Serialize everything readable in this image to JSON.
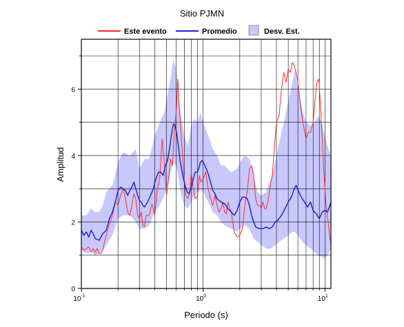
{
  "chart_data": {
    "type": "line",
    "title": "Sitio PJMN",
    "xlabel": "Periodo (s)",
    "ylabel": "Amplitud",
    "x_scale": "log",
    "xlim": [
      0.1,
      11.2
    ],
    "ylim": [
      0,
      7.5
    ],
    "x_tick_labels": [
      {
        "x": 0.1,
        "base": "10",
        "exp": "-1"
      },
      {
        "x": 1,
        "base": "10",
        "exp": "0"
      },
      {
        "x": 10,
        "base": "10",
        "exp": "1"
      }
    ],
    "y_ticks": [
      0,
      2,
      4,
      6
    ],
    "grid": true,
    "legend_position": "top",
    "legend": [
      {
        "label": "Este evento",
        "kind": "line",
        "color": "#ff2a2a"
      },
      {
        "label": "Promedio",
        "kind": "line",
        "color": "#1a1ad0"
      },
      {
        "label": "Desv. Est.",
        "kind": "band",
        "color": "#c8c8ff"
      }
    ],
    "series": [
      {
        "name": "Este evento",
        "color": "#ff2a2a",
        "points": [
          [
            0.1,
            1.25
          ],
          [
            0.105,
            1.15
          ],
          [
            0.11,
            1.2
          ],
          [
            0.115,
            1.25
          ],
          [
            0.12,
            1.1
          ],
          [
            0.125,
            1.2
          ],
          [
            0.13,
            1.1
          ],
          [
            0.135,
            1.2
          ],
          [
            0.14,
            1.05
          ],
          [
            0.145,
            1.05
          ],
          [
            0.15,
            1.15
          ],
          [
            0.155,
            1.4
          ],
          [
            0.16,
            1.6
          ],
          [
            0.17,
            1.95
          ],
          [
            0.18,
            2.2
          ],
          [
            0.19,
            2.6
          ],
          [
            0.2,
            2.5
          ],
          [
            0.21,
            2.8
          ],
          [
            0.22,
            3.0
          ],
          [
            0.23,
            2.7
          ],
          [
            0.24,
            2.3
          ],
          [
            0.25,
            2.2
          ],
          [
            0.26,
            2.5
          ],
          [
            0.27,
            2.85
          ],
          [
            0.28,
            2.7
          ],
          [
            0.29,
            2.2
          ],
          [
            0.3,
            2.1
          ],
          [
            0.31,
            2.3
          ],
          [
            0.32,
            1.9
          ],
          [
            0.33,
            1.85
          ],
          [
            0.34,
            2.2
          ],
          [
            0.36,
            2.2
          ],
          [
            0.38,
            2.55
          ],
          [
            0.4,
            2.2
          ],
          [
            0.42,
            3.0
          ],
          [
            0.44,
            3.3
          ],
          [
            0.46,
            4.5
          ],
          [
            0.48,
            3.8
          ],
          [
            0.5,
            2.8
          ],
          [
            0.52,
            3.3
          ],
          [
            0.54,
            3.9
          ],
          [
            0.56,
            3.7
          ],
          [
            0.58,
            4.7
          ],
          [
            0.6,
            5.3
          ],
          [
            0.62,
            6.3
          ],
          [
            0.64,
            5.3
          ],
          [
            0.66,
            4.6
          ],
          [
            0.68,
            3.9
          ],
          [
            0.7,
            3.2
          ],
          [
            0.72,
            2.8
          ],
          [
            0.75,
            2.7
          ],
          [
            0.78,
            3.0
          ],
          [
            0.8,
            3.5
          ],
          [
            0.83,
            3.0
          ],
          [
            0.86,
            2.7
          ],
          [
            0.9,
            2.8
          ],
          [
            0.93,
            3.4
          ],
          [
            0.96,
            3.2
          ],
          [
            1.0,
            3.3
          ],
          [
            1.05,
            3.5
          ],
          [
            1.1,
            3.0
          ],
          [
            1.15,
            2.7
          ],
          [
            1.2,
            2.5
          ],
          [
            1.25,
            2.8
          ],
          [
            1.3,
            2.5
          ],
          [
            1.35,
            2.3
          ],
          [
            1.4,
            2.4
          ],
          [
            1.45,
            2.6
          ],
          [
            1.5,
            2.3
          ],
          [
            1.55,
            2.25
          ],
          [
            1.6,
            2.6
          ],
          [
            1.7,
            2.3
          ],
          [
            1.8,
            1.7
          ],
          [
            1.9,
            1.55
          ],
          [
            2.0,
            1.6
          ],
          [
            2.1,
            1.8
          ],
          [
            2.2,
            2.5
          ],
          [
            2.3,
            2.9
          ],
          [
            2.4,
            3.6
          ],
          [
            2.5,
            3.7
          ],
          [
            2.6,
            3.4
          ],
          [
            2.7,
            2.7
          ],
          [
            2.8,
            2.5
          ],
          [
            2.9,
            2.5
          ],
          [
            3.0,
            2.4
          ],
          [
            3.1,
            2.6
          ],
          [
            3.2,
            2.4
          ],
          [
            3.3,
            2.4
          ],
          [
            3.4,
            2.6
          ],
          [
            3.5,
            2.9
          ],
          [
            3.6,
            3.2
          ],
          [
            3.7,
            3.4
          ],
          [
            3.8,
            4.0
          ],
          [
            4.0,
            5.0
          ],
          [
            4.2,
            5.2
          ],
          [
            4.4,
            6.0
          ],
          [
            4.6,
            6.5
          ],
          [
            4.8,
            6.2
          ],
          [
            5.0,
            6.6
          ],
          [
            5.2,
            6.5
          ],
          [
            5.4,
            6.8
          ],
          [
            5.6,
            6.7
          ],
          [
            5.8,
            6.5
          ],
          [
            6.0,
            6.2
          ],
          [
            6.3,
            5.5
          ],
          [
            6.6,
            5.0
          ],
          [
            7.0,
            4.5
          ],
          [
            7.3,
            4.7
          ],
          [
            7.6,
            4.7
          ],
          [
            8.0,
            5.0
          ],
          [
            8.3,
            5.7
          ],
          [
            8.6,
            6.2
          ],
          [
            8.9,
            6.3
          ],
          [
            9.2,
            5.5
          ],
          [
            9.5,
            4.5
          ],
          [
            9.8,
            3.5
          ],
          [
            10.2,
            2.5
          ],
          [
            10.6,
            2.0
          ],
          [
            11.0,
            1.5
          ],
          [
            11.2,
            1.4
          ]
        ]
      },
      {
        "name": "Promedio",
        "color": "#1a1ad0",
        "points": [
          [
            0.1,
            1.75
          ],
          [
            0.105,
            1.6
          ],
          [
            0.11,
            1.7
          ],
          [
            0.115,
            1.55
          ],
          [
            0.12,
            1.75
          ],
          [
            0.125,
            1.65
          ],
          [
            0.13,
            1.5
          ],
          [
            0.14,
            1.45
          ],
          [
            0.15,
            1.65
          ],
          [
            0.16,
            1.75
          ],
          [
            0.17,
            2.1
          ],
          [
            0.18,
            2.3
          ],
          [
            0.19,
            2.6
          ],
          [
            0.2,
            2.95
          ],
          [
            0.21,
            3.05
          ],
          [
            0.22,
            3.0
          ],
          [
            0.23,
            2.95
          ],
          [
            0.24,
            2.8
          ],
          [
            0.25,
            2.95
          ],
          [
            0.26,
            3.05
          ],
          [
            0.27,
            3.2
          ],
          [
            0.28,
            3.0
          ],
          [
            0.29,
            2.8
          ],
          [
            0.3,
            2.65
          ],
          [
            0.31,
            2.6
          ],
          [
            0.32,
            2.5
          ],
          [
            0.33,
            2.45
          ],
          [
            0.35,
            2.6
          ],
          [
            0.37,
            2.8
          ],
          [
            0.39,
            3.0
          ],
          [
            0.41,
            3.3
          ],
          [
            0.43,
            3.5
          ],
          [
            0.45,
            3.5
          ],
          [
            0.47,
            3.4
          ],
          [
            0.49,
            3.7
          ],
          [
            0.51,
            3.85
          ],
          [
            0.53,
            4.2
          ],
          [
            0.55,
            4.65
          ],
          [
            0.57,
            4.95
          ],
          [
            0.59,
            4.9
          ],
          [
            0.61,
            4.6
          ],
          [
            0.63,
            4.2
          ],
          [
            0.65,
            3.8
          ],
          [
            0.68,
            3.4
          ],
          [
            0.71,
            3.1
          ],
          [
            0.74,
            2.9
          ],
          [
            0.77,
            2.85
          ],
          [
            0.8,
            3.05
          ],
          [
            0.83,
            3.3
          ],
          [
            0.86,
            3.5
          ],
          [
            0.89,
            3.5
          ],
          [
            0.92,
            3.6
          ],
          [
            0.95,
            3.8
          ],
          [
            0.98,
            3.85
          ],
          [
            1.02,
            3.75
          ],
          [
            1.06,
            3.6
          ],
          [
            1.1,
            3.45
          ],
          [
            1.15,
            3.2
          ],
          [
            1.2,
            2.95
          ],
          [
            1.25,
            2.85
          ],
          [
            1.3,
            2.7
          ],
          [
            1.4,
            2.6
          ],
          [
            1.5,
            2.55
          ],
          [
            1.6,
            2.4
          ],
          [
            1.7,
            2.3
          ],
          [
            1.8,
            2.2
          ],
          [
            1.9,
            2.35
          ],
          [
            2.0,
            2.6
          ],
          [
            2.1,
            2.75
          ],
          [
            2.2,
            2.75
          ],
          [
            2.3,
            2.7
          ],
          [
            2.4,
            2.5
          ],
          [
            2.5,
            2.2
          ],
          [
            2.6,
            2.0
          ],
          [
            2.7,
            1.85
          ],
          [
            2.9,
            1.8
          ],
          [
            3.1,
            1.8
          ],
          [
            3.3,
            1.85
          ],
          [
            3.5,
            1.8
          ],
          [
            3.7,
            1.85
          ],
          [
            3.9,
            2.0
          ],
          [
            4.1,
            2.05
          ],
          [
            4.4,
            2.2
          ],
          [
            4.7,
            2.4
          ],
          [
            5.0,
            2.6
          ],
          [
            5.3,
            2.75
          ],
          [
            5.6,
            3.0
          ],
          [
            5.8,
            3.1
          ],
          [
            6.1,
            2.9
          ],
          [
            6.4,
            2.75
          ],
          [
            6.8,
            2.6
          ],
          [
            7.2,
            2.45
          ],
          [
            7.6,
            2.6
          ],
          [
            8.0,
            2.35
          ],
          [
            8.5,
            2.25
          ],
          [
            9.0,
            2.1
          ],
          [
            9.5,
            2.3
          ],
          [
            10.0,
            2.35
          ],
          [
            10.5,
            2.3
          ],
          [
            11.0,
            2.5
          ],
          [
            11.2,
            2.6
          ]
        ]
      }
    ],
    "band": {
      "name": "Desv. Est.",
      "color": "#c8c8ff",
      "points": [
        [
          0.1,
          1.15,
          2.2
        ],
        [
          0.11,
          1.05,
          2.2
        ],
        [
          0.12,
          1.1,
          2.4
        ],
        [
          0.13,
          1.0,
          2.3
        ],
        [
          0.14,
          1.05,
          2.3
        ],
        [
          0.15,
          1.15,
          2.5
        ],
        [
          0.16,
          1.3,
          2.9
        ],
        [
          0.18,
          1.6,
          3.1
        ],
        [
          0.2,
          2.1,
          3.8
        ],
        [
          0.22,
          2.2,
          4.1
        ],
        [
          0.25,
          2.2,
          4.0
        ],
        [
          0.28,
          2.0,
          4.2
        ],
        [
          0.3,
          1.8,
          3.6
        ],
        [
          0.33,
          1.8,
          3.9
        ],
        [
          0.36,
          1.9,
          3.9
        ],
        [
          0.4,
          2.3,
          4.6
        ],
        [
          0.44,
          2.5,
          5.0
        ],
        [
          0.48,
          2.8,
          5.3
        ],
        [
          0.52,
          3.2,
          6.0
        ],
        [
          0.55,
          3.6,
          6.5
        ],
        [
          0.57,
          3.8,
          6.9
        ],
        [
          0.6,
          3.7,
          6.6
        ],
        [
          0.63,
          3.3,
          5.8
        ],
        [
          0.66,
          2.8,
          5.2
        ],
        [
          0.7,
          2.5,
          4.6
        ],
        [
          0.75,
          2.4,
          4.3
        ],
        [
          0.8,
          2.6,
          4.9
        ],
        [
          0.85,
          2.8,
          5.1
        ],
        [
          0.9,
          2.9,
          5.0
        ],
        [
          0.95,
          3.0,
          5.3
        ],
        [
          1.0,
          2.9,
          5.0
        ],
        [
          1.1,
          2.6,
          4.6
        ],
        [
          1.2,
          2.3,
          4.2
        ],
        [
          1.3,
          2.2,
          4.0
        ],
        [
          1.4,
          2.0,
          3.7
        ],
        [
          1.5,
          1.9,
          3.7
        ],
        [
          1.7,
          1.8,
          3.5
        ],
        [
          1.9,
          1.7,
          3.6
        ],
        [
          2.0,
          1.8,
          3.8
        ],
        [
          2.2,
          1.9,
          4.0
        ],
        [
          2.4,
          1.8,
          3.9
        ],
        [
          2.6,
          1.5,
          3.4
        ],
        [
          2.8,
          1.4,
          2.9
        ],
        [
          3.0,
          1.3,
          2.8
        ],
        [
          3.3,
          1.2,
          2.9
        ],
        [
          3.6,
          1.2,
          3.3
        ],
        [
          3.9,
          1.3,
          3.8
        ],
        [
          4.2,
          1.4,
          4.4
        ],
        [
          4.6,
          1.5,
          5.0
        ],
        [
          5.0,
          1.6,
          5.6
        ],
        [
          5.4,
          1.7,
          6.2
        ],
        [
          5.7,
          1.7,
          6.6
        ],
        [
          6.0,
          1.6,
          6.0
        ],
        [
          6.5,
          1.4,
          5.4
        ],
        [
          7.0,
          1.3,
          5.0
        ],
        [
          7.6,
          1.2,
          4.9
        ],
        [
          8.2,
          1.1,
          5.0
        ],
        [
          8.8,
          1.0,
          5.2
        ],
        [
          9.4,
          0.95,
          5.0
        ],
        [
          10.0,
          0.9,
          4.6
        ],
        [
          10.5,
          1.0,
          4.3
        ],
        [
          11.2,
          1.2,
          4.0
        ]
      ]
    }
  }
}
